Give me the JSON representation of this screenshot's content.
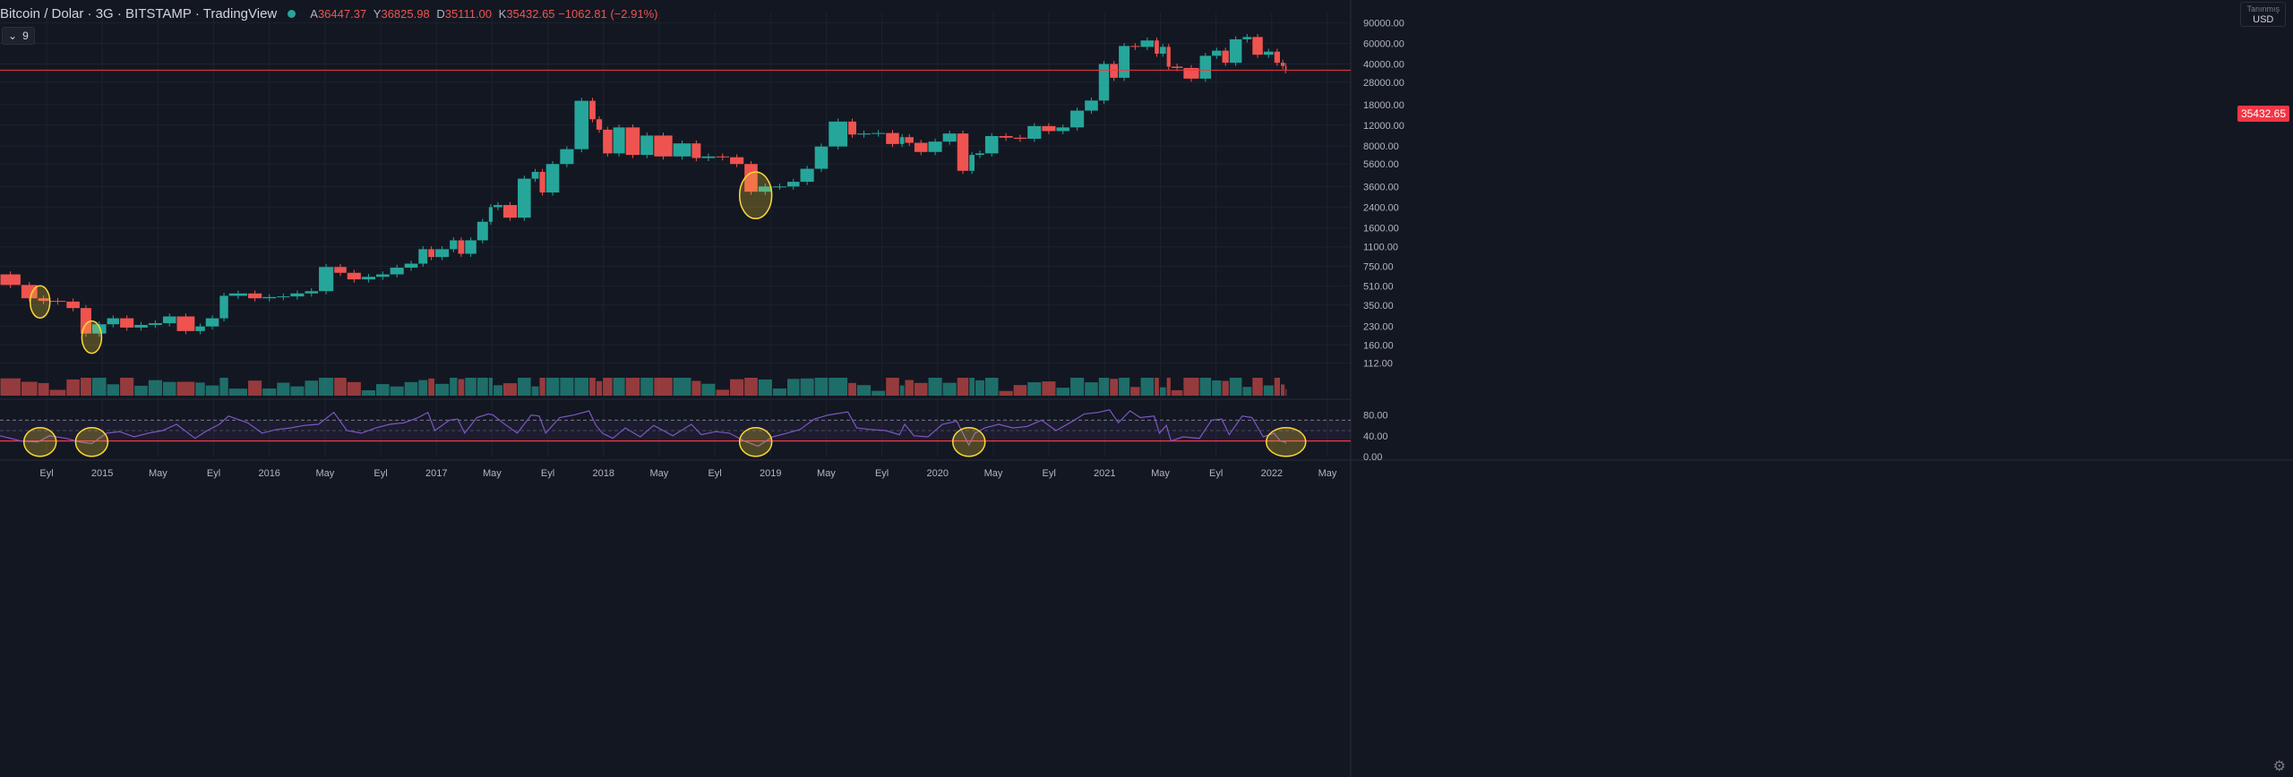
{
  "header": {
    "symbol": "Bitcoin / Dolar · 3G · BITSTAMP · TradingView",
    "open_label": "A",
    "open": "36447.37",
    "high_label": "Y",
    "high": "36825.98",
    "low_label": "D",
    "low": "35111.00",
    "close_label": "K",
    "close": "35432.65",
    "change": "−1062.81 (−2.91%)"
  },
  "indicator_button": {
    "label": "9",
    "icon": "chevron-down-icon"
  },
  "currency": {
    "top": "Tanınmış",
    "label": "USD"
  },
  "colors": {
    "background": "#131722",
    "up": "#26a69a",
    "down": "#ef5350",
    "rsi": "#7e57c2",
    "highlight": "#fdd835",
    "last_price": "#f23645"
  },
  "last_price_tag": "35432.65",
  "chart_data": {
    "type": "candlestick",
    "y_scale": "log",
    "price_axis_labels": [
      "90000.00",
      "60000.00",
      "40000.00",
      "28000.00",
      "18000.00",
      "12000.00",
      "8000.00",
      "5600.00",
      "3600.00",
      "2400.00",
      "1600.00",
      "1100.00",
      "750.00",
      "510.00",
      "350.00",
      "230.00",
      "160.00",
      "112.00"
    ],
    "rsi_axis_labels": [
      "80.00",
      "40.00",
      "0.00"
    ],
    "time_axis_labels": [
      "Eyl",
      "2015",
      "May",
      "Eyl",
      "2016",
      "May",
      "Eyl",
      "2017",
      "May",
      "Eyl",
      "2018",
      "May",
      "Eyl",
      "2019",
      "May",
      "Eyl",
      "2020",
      "May",
      "Eyl",
      "2021",
      "May",
      "Eyl",
      "2022",
      "May"
    ],
    "price_series": [
      [
        "2014-07-01",
        640
      ],
      [
        "2014-08-15",
        520
      ],
      [
        "2014-09-20",
        400
      ],
      [
        "2014-10-15",
        380
      ],
      [
        "2014-11-20",
        375
      ],
      [
        "2014-12-20",
        330
      ],
      [
        "2015-01-14",
        200
      ],
      [
        "2015-02-15",
        240
      ],
      [
        "2015-03-15",
        270
      ],
      [
        "2015-04-15",
        225
      ],
      [
        "2015-05-15",
        237
      ],
      [
        "2015-06-15",
        245
      ],
      [
        "2015-07-15",
        280
      ],
      [
        "2015-08-24",
        210
      ],
      [
        "2015-09-15",
        230
      ],
      [
        "2015-10-15",
        270
      ],
      [
        "2015-11-04",
        420
      ],
      [
        "2015-12-15",
        440
      ],
      [
        "2016-01-15",
        400
      ],
      [
        "2016-02-15",
        410
      ],
      [
        "2016-03-15",
        415
      ],
      [
        "2016-04-15",
        440
      ],
      [
        "2016-05-15",
        460
      ],
      [
        "2016-06-17",
        740
      ],
      [
        "2016-07-15",
        660
      ],
      [
        "2016-08-15",
        580
      ],
      [
        "2016-09-15",
        610
      ],
      [
        "2016-10-15",
        640
      ],
      [
        "2016-11-15",
        730
      ],
      [
        "2016-12-15",
        790
      ],
      [
        "2017-01-05",
        1050
      ],
      [
        "2017-01-20",
        900
      ],
      [
        "2017-02-20",
        1050
      ],
      [
        "2017-03-10",
        1250
      ],
      [
        "2017-03-25",
        960
      ],
      [
        "2017-04-20",
        1250
      ],
      [
        "2017-05-15",
        1800
      ],
      [
        "2017-05-25",
        2400
      ],
      [
        "2017-06-15",
        2500
      ],
      [
        "2017-07-16",
        1950
      ],
      [
        "2017-08-15",
        4200
      ],
      [
        "2017-09-01",
        4800
      ],
      [
        "2017-09-15",
        3200
      ],
      [
        "2017-10-15",
        5600
      ],
      [
        "2017-11-15",
        7500
      ],
      [
        "2017-12-17",
        19400
      ],
      [
        "2018-01-01",
        13500
      ],
      [
        "2018-01-15",
        11000
      ],
      [
        "2018-02-06",
        6900
      ],
      [
        "2018-03-05",
        11500
      ],
      [
        "2018-04-06",
        6700
      ],
      [
        "2018-05-05",
        9800
      ],
      [
        "2018-06-15",
        6500
      ],
      [
        "2018-07-25",
        8400
      ],
      [
        "2018-08-15",
        6300
      ],
      [
        "2018-09-15",
        6500
      ],
      [
        "2018-10-15",
        6400
      ],
      [
        "2018-11-15",
        5600
      ],
      [
        "2018-12-15",
        3250
      ],
      [
        "2019-01-15",
        3600
      ],
      [
        "2019-02-15",
        3600
      ],
      [
        "2019-03-15",
        3950
      ],
      [
        "2019-04-15",
        5100
      ],
      [
        "2019-05-15",
        7900
      ],
      [
        "2019-06-26",
        12900
      ],
      [
        "2019-07-15",
        10000
      ],
      [
        "2019-08-15",
        10200
      ],
      [
        "2019-09-15",
        10300
      ],
      [
        "2019-10-15",
        8300
      ],
      [
        "2019-10-26",
        9500
      ],
      [
        "2019-11-15",
        8500
      ],
      [
        "2019-12-15",
        7100
      ],
      [
        "2020-01-15",
        8700
      ],
      [
        "2020-02-15",
        10200
      ],
      [
        "2020-03-12",
        4900
      ],
      [
        "2020-03-25",
        6700
      ],
      [
        "2020-04-15",
        6900
      ],
      [
        "2020-05-15",
        9700
      ],
      [
        "2020-06-15",
        9400
      ],
      [
        "2020-07-15",
        9200
      ],
      [
        "2020-08-15",
        11800
      ],
      [
        "2020-09-15",
        10700
      ],
      [
        "2020-10-15",
        11500
      ],
      [
        "2020-11-15",
        16000
      ],
      [
        "2020-12-15",
        19500
      ],
      [
        "2021-01-08",
        40000
      ],
      [
        "2021-01-27",
        30500
      ],
      [
        "2021-02-21",
        57000
      ],
      [
        "2021-03-15",
        56000
      ],
      [
        "2021-04-14",
        63500
      ],
      [
        "2021-04-25",
        49000
      ],
      [
        "2021-05-10",
        56000
      ],
      [
        "2021-05-20",
        38000
      ],
      [
        "2021-06-15",
        37000
      ],
      [
        "2021-07-20",
        30000
      ],
      [
        "2021-08-15",
        47000
      ],
      [
        "2021-09-06",
        52000
      ],
      [
        "2021-09-22",
        41000
      ],
      [
        "2021-10-20",
        65000
      ],
      [
        "2021-11-10",
        68000
      ],
      [
        "2021-12-04",
        48000
      ],
      [
        "2021-12-27",
        51000
      ],
      [
        "2022-01-10",
        41000
      ],
      [
        "2022-01-20",
        38500
      ],
      [
        "2022-01-22",
        35400
      ]
    ],
    "rsi_series": [
      [
        "2014-07-01",
        40
      ],
      [
        "2014-08-15",
        30
      ],
      [
        "2014-09-20",
        28
      ],
      [
        "2014-10-15",
        40
      ],
      [
        "2014-11-20",
        35
      ],
      [
        "2014-12-20",
        28
      ],
      [
        "2015-01-14",
        25
      ],
      [
        "2015-02-15",
        45
      ],
      [
        "2015-03-15",
        48
      ],
      [
        "2015-04-15",
        38
      ],
      [
        "2015-05-15",
        45
      ],
      [
        "2015-06-15",
        50
      ],
      [
        "2015-07-15",
        62
      ],
      [
        "2015-08-24",
        35
      ],
      [
        "2015-09-15",
        48
      ],
      [
        "2015-10-15",
        62
      ],
      [
        "2015-11-04",
        78
      ],
      [
        "2015-12-15",
        65
      ],
      [
        "2016-01-15",
        45
      ],
      [
        "2016-02-15",
        52
      ],
      [
        "2016-03-15",
        55
      ],
      [
        "2016-04-15",
        60
      ],
      [
        "2016-05-15",
        62
      ],
      [
        "2016-06-17",
        85
      ],
      [
        "2016-07-15",
        50
      ],
      [
        "2016-08-15",
        45
      ],
      [
        "2016-09-15",
        55
      ],
      [
        "2016-10-15",
        62
      ],
      [
        "2016-11-15",
        65
      ],
      [
        "2016-12-15",
        75
      ],
      [
        "2017-01-05",
        85
      ],
      [
        "2017-01-20",
        50
      ],
      [
        "2017-02-20",
        70
      ],
      [
        "2017-03-10",
        72
      ],
      [
        "2017-03-25",
        45
      ],
      [
        "2017-04-20",
        75
      ],
      [
        "2017-05-15",
        82
      ],
      [
        "2017-05-25",
        80
      ],
      [
        "2017-06-15",
        65
      ],
      [
        "2017-07-16",
        45
      ],
      [
        "2017-08-15",
        80
      ],
      [
        "2017-09-01",
        78
      ],
      [
        "2017-09-15",
        45
      ],
      [
        "2017-10-15",
        75
      ],
      [
        "2017-11-15",
        80
      ],
      [
        "2017-12-17",
        88
      ],
      [
        "2018-01-01",
        60
      ],
      [
        "2018-01-15",
        45
      ],
      [
        "2018-02-06",
        35
      ],
      [
        "2018-03-05",
        55
      ],
      [
        "2018-04-06",
        38
      ],
      [
        "2018-05-05",
        60
      ],
      [
        "2018-06-15",
        40
      ],
      [
        "2018-07-25",
        62
      ],
      [
        "2018-08-15",
        42
      ],
      [
        "2018-09-15",
        48
      ],
      [
        "2018-10-15",
        45
      ],
      [
        "2018-11-15",
        30
      ],
      [
        "2018-12-15",
        20
      ],
      [
        "2019-01-15",
        38
      ],
      [
        "2019-02-15",
        45
      ],
      [
        "2019-03-15",
        52
      ],
      [
        "2019-04-15",
        72
      ],
      [
        "2019-05-15",
        80
      ],
      [
        "2019-06-26",
        86
      ],
      [
        "2019-07-15",
        55
      ],
      [
        "2019-08-15",
        52
      ],
      [
        "2019-09-15",
        50
      ],
      [
        "2019-10-15",
        42
      ],
      [
        "2019-10-26",
        62
      ],
      [
        "2019-11-15",
        40
      ],
      [
        "2019-12-15",
        38
      ],
      [
        "2020-01-15",
        62
      ],
      [
        "2020-02-15",
        68
      ],
      [
        "2020-03-12",
        22
      ],
      [
        "2020-03-25",
        45
      ],
      [
        "2020-04-15",
        55
      ],
      [
        "2020-05-15",
        62
      ],
      [
        "2020-06-15",
        55
      ],
      [
        "2020-07-15",
        58
      ],
      [
        "2020-08-15",
        70
      ],
      [
        "2020-09-15",
        50
      ],
      [
        "2020-10-15",
        65
      ],
      [
        "2020-11-15",
        82
      ],
      [
        "2020-12-15",
        85
      ],
      [
        "2021-01-08",
        90
      ],
      [
        "2021-01-27",
        65
      ],
      [
        "2021-02-21",
        88
      ],
      [
        "2021-03-15",
        75
      ],
      [
        "2021-04-14",
        78
      ],
      [
        "2021-04-25",
        45
      ],
      [
        "2021-05-10",
        60
      ],
      [
        "2021-05-20",
        30
      ],
      [
        "2021-06-15",
        38
      ],
      [
        "2021-07-20",
        35
      ],
      [
        "2021-08-15",
        70
      ],
      [
        "2021-09-06",
        72
      ],
      [
        "2021-09-22",
        42
      ],
      [
        "2021-10-20",
        78
      ],
      [
        "2021-11-10",
        75
      ],
      [
        "2021-12-04",
        38
      ],
      [
        "2021-12-27",
        45
      ],
      [
        "2022-01-10",
        30
      ],
      [
        "2022-01-20",
        28
      ],
      [
        "2022-01-22",
        25
      ]
    ],
    "rsi_band": [
      30,
      70
    ],
    "highlighted_dates": [
      "2014-09-25",
      "2015-01-14",
      "2018-12-10",
      "2020-03-12",
      "2022-01-22"
    ]
  }
}
